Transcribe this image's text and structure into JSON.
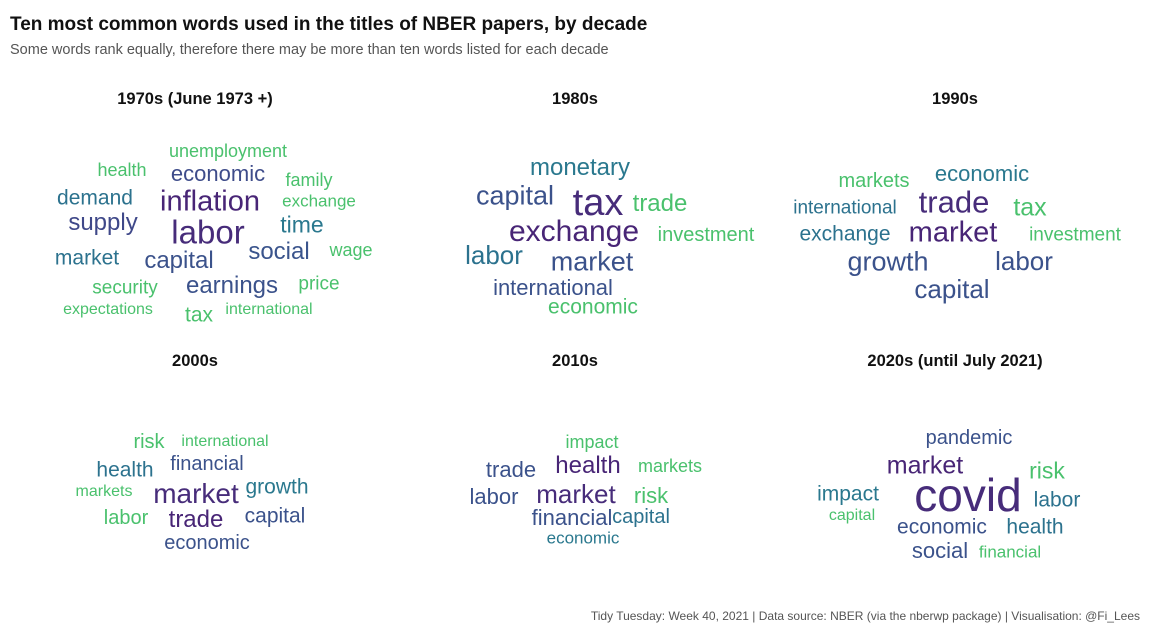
{
  "header": {
    "title": "Ten most common words used in the titles of NBER papers, by decade",
    "subtitle": "Some words rank equally, therefore there may be more than ten words listed for each decade"
  },
  "caption": "Tidy Tuesday: Week 40, 2021 | Data source: NBER (via the nberwp package) | Visualisation: @Fi_Lees",
  "chart_data": [
    {
      "type": "wordcloud",
      "title": "1970s (June 1973 +)",
      "words": [
        {
          "text": "labor",
          "rank": 1,
          "color": "#472c7a"
        },
        {
          "text": "inflation",
          "rank": 2,
          "color": "#482576"
        },
        {
          "text": "supply",
          "rank": 3,
          "color": "#3f4889"
        },
        {
          "text": "social",
          "rank": 3,
          "color": "#3a548c"
        },
        {
          "text": "capital",
          "rank": 3,
          "color": "#3b528b"
        },
        {
          "text": "time",
          "rank": 4,
          "color": "#2a788e"
        },
        {
          "text": "earnings",
          "rank": 4,
          "color": "#3b528b"
        },
        {
          "text": "economic",
          "rank": 5,
          "color": "#3e4c8a"
        },
        {
          "text": "demand",
          "rank": 5,
          "color": "#2c728e"
        },
        {
          "text": "market",
          "rank": 5,
          "color": "#2c728e"
        },
        {
          "text": "unemployment",
          "rank": 6,
          "color": "#4ac16d"
        },
        {
          "text": "health",
          "rank": 6,
          "color": "#4ac16d"
        },
        {
          "text": "family",
          "rank": 6,
          "color": "#4ac16d"
        },
        {
          "text": "exchange",
          "rank": 6,
          "color": "#4ac16d"
        },
        {
          "text": "wage",
          "rank": 6,
          "color": "#4ac16d"
        },
        {
          "text": "security",
          "rank": 6,
          "color": "#4ac16d"
        },
        {
          "text": "price",
          "rank": 6,
          "color": "#4ac16d"
        },
        {
          "text": "expectations",
          "rank": 7,
          "color": "#4ac16d"
        },
        {
          "text": "tax",
          "rank": 6,
          "color": "#4ac16d"
        },
        {
          "text": "international",
          "rank": 7,
          "color": "#4ac16d"
        }
      ]
    },
    {
      "type": "wordcloud",
      "title": "1980s",
      "words": [
        {
          "text": "tax",
          "rank": 1,
          "color": "#472c7a"
        },
        {
          "text": "exchange",
          "rank": 2,
          "color": "#482576"
        },
        {
          "text": "capital",
          "rank": 3,
          "color": "#3b528b"
        },
        {
          "text": "market",
          "rank": 3,
          "color": "#3b528b"
        },
        {
          "text": "monetary",
          "rank": 4,
          "color": "#2a788e"
        },
        {
          "text": "labor",
          "rank": 4,
          "color": "#2c728e"
        },
        {
          "text": "trade",
          "rank": 5,
          "color": "#4ac16d"
        },
        {
          "text": "international",
          "rank": 5,
          "color": "#3b528b"
        },
        {
          "text": "investment",
          "rank": 6,
          "color": "#4ac16d"
        },
        {
          "text": "economic",
          "rank": 6,
          "color": "#4ac16d"
        }
      ]
    },
    {
      "type": "wordcloud",
      "title": "1990s",
      "words": [
        {
          "text": "trade",
          "rank": 1,
          "color": "#472c7a"
        },
        {
          "text": "market",
          "rank": 1,
          "color": "#482576"
        },
        {
          "text": "growth",
          "rank": 2,
          "color": "#3b528b"
        },
        {
          "text": "labor",
          "rank": 2,
          "color": "#3b528b"
        },
        {
          "text": "capital",
          "rank": 3,
          "color": "#3b528b"
        },
        {
          "text": "tax",
          "rank": 4,
          "color": "#4ac16d"
        },
        {
          "text": "economic",
          "rank": 4,
          "color": "#2a788e"
        },
        {
          "text": "exchange",
          "rank": 4,
          "color": "#2c728e"
        },
        {
          "text": "international",
          "rank": 4,
          "color": "#2c728e"
        },
        {
          "text": "markets",
          "rank": 5,
          "color": "#4ac16d"
        },
        {
          "text": "investment",
          "rank": 5,
          "color": "#4ac16d"
        }
      ]
    },
    {
      "type": "wordcloud",
      "title": "2000s",
      "words": [
        {
          "text": "market",
          "rank": 1,
          "color": "#472c7a"
        },
        {
          "text": "trade",
          "rank": 2,
          "color": "#482576"
        },
        {
          "text": "health",
          "rank": 3,
          "color": "#2c728e"
        },
        {
          "text": "financial",
          "rank": 3,
          "color": "#3b528b"
        },
        {
          "text": "capital",
          "rank": 3,
          "color": "#3b528b"
        },
        {
          "text": "risk",
          "rank": 3,
          "color": "#4ac16d"
        },
        {
          "text": "growth",
          "rank": 3,
          "color": "#2a788e"
        },
        {
          "text": "labor",
          "rank": 3,
          "color": "#4ac16d"
        },
        {
          "text": "economic",
          "rank": 4,
          "color": "#3b528b"
        },
        {
          "text": "international",
          "rank": 5,
          "color": "#4ac16d"
        },
        {
          "text": "markets",
          "rank": 5,
          "color": "#4ac16d"
        }
      ]
    },
    {
      "type": "wordcloud",
      "title": "2010s",
      "words": [
        {
          "text": "market",
          "rank": 1,
          "color": "#472c7a"
        },
        {
          "text": "health",
          "rank": 1,
          "color": "#482576"
        },
        {
          "text": "trade",
          "rank": 2,
          "color": "#3b528b"
        },
        {
          "text": "labor",
          "rank": 2,
          "color": "#3b528b"
        },
        {
          "text": "financial",
          "rank": 2,
          "color": "#3b528b"
        },
        {
          "text": "risk",
          "rank": 2,
          "color": "#4ac16d"
        },
        {
          "text": "capital",
          "rank": 3,
          "color": "#2c728e"
        },
        {
          "text": "impact",
          "rank": 4,
          "color": "#4ac16d"
        },
        {
          "text": "markets",
          "rank": 4,
          "color": "#4ac16d"
        },
        {
          "text": "economic",
          "rank": 4,
          "color": "#2a788e"
        }
      ]
    },
    {
      "type": "wordcloud",
      "title": "2020s (until July 2021)",
      "words": [
        {
          "text": "covid",
          "rank": 1,
          "color": "#472c7a"
        },
        {
          "text": "market",
          "rank": 2,
          "color": "#482576"
        },
        {
          "text": "risk",
          "rank": 3,
          "color": "#4ac16d"
        },
        {
          "text": "pandemic",
          "rank": 3,
          "color": "#3b528b"
        },
        {
          "text": "impact",
          "rank": 3,
          "color": "#2a788e"
        },
        {
          "text": "labor",
          "rank": 3,
          "color": "#2c728e"
        },
        {
          "text": "economic",
          "rank": 3,
          "color": "#3b528b"
        },
        {
          "text": "health",
          "rank": 3,
          "color": "#2c728e"
        },
        {
          "text": "social",
          "rank": 3,
          "color": "#3b528b"
        },
        {
          "text": "capital",
          "rank": 4,
          "color": "#4ac16d"
        },
        {
          "text": "financial",
          "rank": 4,
          "color": "#4ac16d"
        }
      ]
    }
  ]
}
